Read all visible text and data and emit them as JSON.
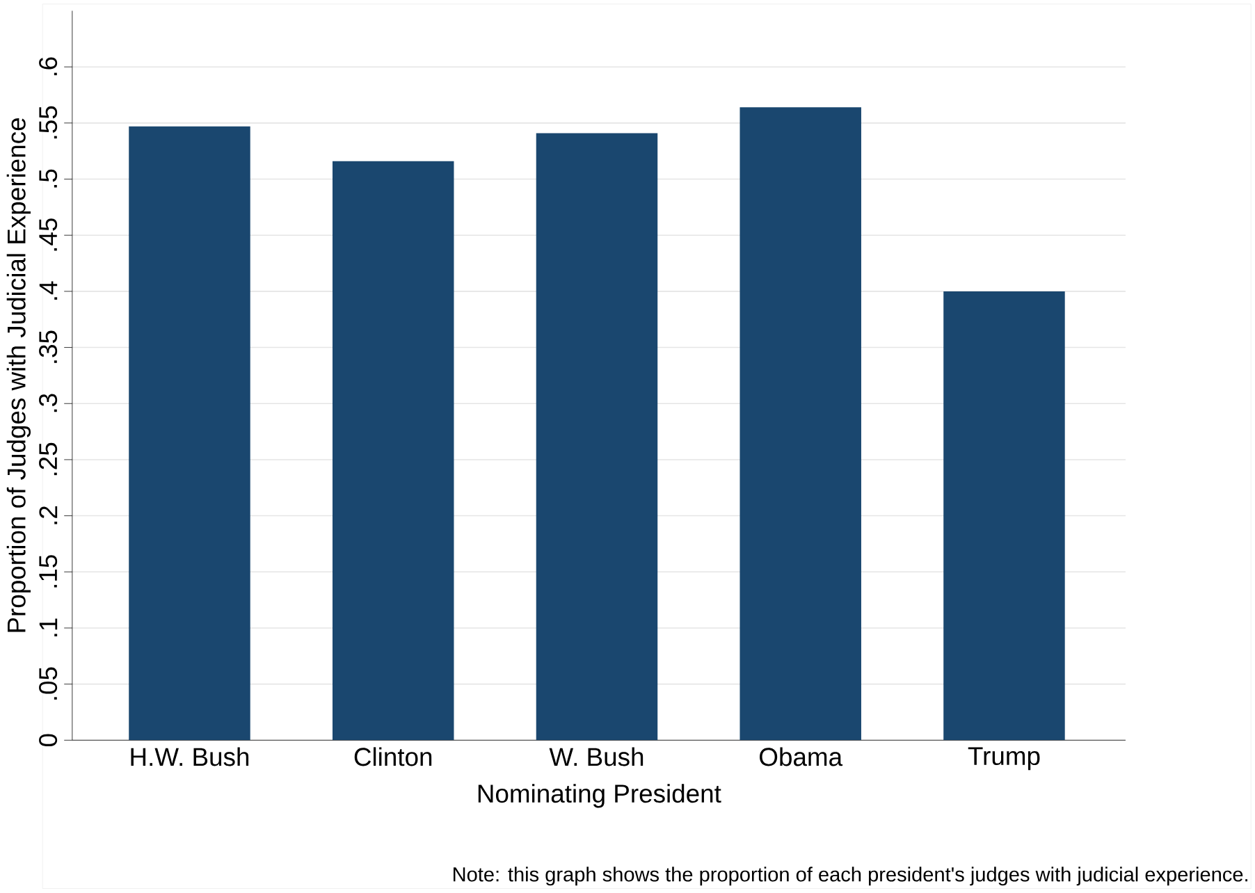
{
  "chart_data": {
    "type": "bar",
    "xlabel": "Nominating President",
    "ylabel": "Proportion of Judges with Judicial Experience",
    "categories": [
      "H.W. Bush",
      "Clinton",
      "W. Bush",
      "Obama",
      "Trump"
    ],
    "values": [
      0.547,
      0.516,
      0.541,
      0.564,
      0.4
    ],
    "color": "#1a476f",
    "ylim": [
      0,
      0.65
    ],
    "yticks": [
      0,
      {
        "value": 0.05,
        "label": ".05"
      },
      {
        "value": 0.1,
        "label": ".1"
      },
      {
        "value": 0.15,
        "label": ".15"
      },
      {
        "value": 0.2,
        "label": ".2"
      },
      {
        "value": 0.25,
        "label": ".25"
      },
      {
        "value": 0.3,
        "label": ".3"
      },
      {
        "value": 0.35,
        "label": ".35"
      },
      {
        "value": 0.4,
        "label": ".4"
      },
      {
        "value": 0.45,
        "label": ".45"
      },
      {
        "value": 0.5,
        "label": ".5"
      },
      {
        "value": 0.55,
        "label": ".55"
      },
      {
        "value": 0.6,
        "label": ".6"
      }
    ],
    "grid": "y",
    "annotations": [
      "Note: this graph shows the proportion of each president's judges with judicial experience."
    ]
  }
}
